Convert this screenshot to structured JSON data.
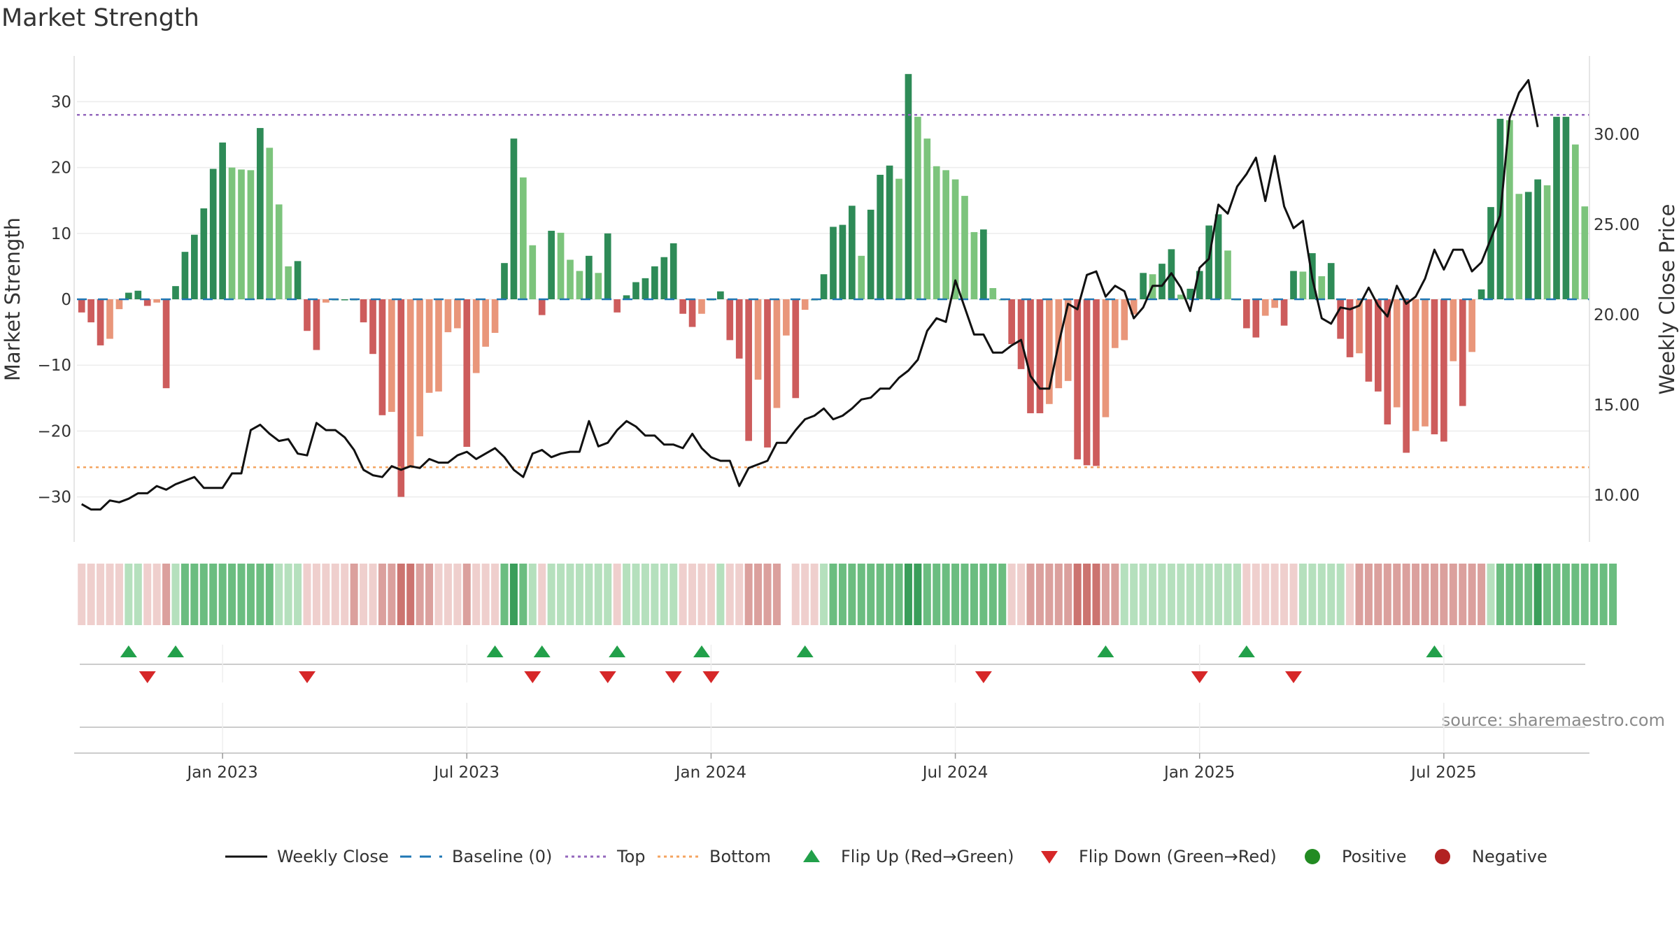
{
  "title": "Market Strength",
  "source": "source: sharemaestro.com",
  "colors": {
    "strong_green": "#2e8b57",
    "light_green": "#7cc47c",
    "strong_red": "#cd5c5c",
    "light_red": "#e9967a",
    "close_line": "#111111",
    "baseline": "#1f77b4",
    "top_line": "#9467bd",
    "bottom_line": "#f4a460",
    "flip_up": "#22a04a",
    "flip_down": "#d62728",
    "positive": "#228b22",
    "negative": "#b22222"
  },
  "legend": [
    {
      "id": "weekly-close",
      "label": "Weekly Close",
      "kind": "line"
    },
    {
      "id": "baseline",
      "label": "Baseline (0)",
      "kind": "dash"
    },
    {
      "id": "top",
      "label": "Top",
      "kind": "dot-purple"
    },
    {
      "id": "bottom",
      "label": "Bottom",
      "kind": "dot-orange"
    },
    {
      "id": "flip-up",
      "label": "Flip Up (Red→Green)",
      "kind": "tri-up"
    },
    {
      "id": "flip-down",
      "label": "Flip Down (Green→Red)",
      "kind": "tri-down"
    },
    {
      "id": "positive",
      "label": "Positive",
      "kind": "dot-green"
    },
    {
      "id": "negative",
      "label": "Negative",
      "kind": "dot-red"
    }
  ],
  "chart_data": {
    "type": "bar",
    "title": "Market Strength",
    "ylabel": "Market Strength",
    "y2label": "Weekly Close Price",
    "ylim": [
      -36,
      36
    ],
    "y2lim": [
      8.5,
      34.2
    ],
    "y_ticks": [
      30,
      20,
      10,
      0,
      -10,
      -20,
      -30
    ],
    "y2_ticks": [
      "30.00",
      "25.00",
      "20.00",
      "15.00",
      "10.00"
    ],
    "x_ticks": [
      {
        "week": 15,
        "label": "Jan 2023"
      },
      {
        "week": 41,
        "label": "Jul 2023"
      },
      {
        "week": 67,
        "label": "Jan 2024"
      },
      {
        "week": 93,
        "label": "Jul 2024"
      },
      {
        "week": 119,
        "label": "Jan 2025"
      },
      {
        "week": 145,
        "label": "Jul 2025"
      }
    ],
    "top_level": 28,
    "bottom_level": -25.5,
    "baseline": 0,
    "grid": true,
    "legend_position": "bottom",
    "strength": [
      -2,
      -3.5,
      -7,
      -6,
      -1.5,
      1,
      1.3,
      -1,
      -0.5,
      -13.5,
      2,
      7.2,
      9.8,
      13.8,
      19.8,
      23.8,
      20,
      19.7,
      19.6,
      26,
      23,
      14.4,
      5,
      5.8,
      -4.8,
      -7.7,
      -0.5,
      0,
      0,
      0,
      -3.5,
      -8.3,
      -17.6,
      -17.1,
      -30,
      -25.5,
      -20.8,
      -14.2,
      -14,
      -5,
      -4.4,
      -22.4,
      -11.2,
      -7.2,
      -5.1,
      5.5,
      24.4,
      18.5,
      8.2,
      -2.4,
      10.4,
      10.1,
      6,
      4.3,
      6.6,
      4,
      10,
      -2,
      0.6,
      2.6,
      3.2,
      5,
      6.4,
      8.5,
      -2.2,
      -4.2,
      -2.2,
      0,
      1.2,
      -6.2,
      -9,
      -21.5,
      -12.2,
      -22.5,
      -16.5,
      -5.5,
      -15,
      -1.6,
      0,
      3.8,
      11,
      11.3,
      14.2,
      6.6,
      13.6,
      18.9,
      20.3,
      18.3,
      34.2,
      27.7,
      24.4,
      20.2,
      19.6,
      18.2,
      15.7,
      10.2,
      10.6,
      1.7,
      0,
      -6.8,
      -10.6,
      -17.3,
      -17.3,
      -15.9,
      -13.5,
      -12.4,
      -24.3,
      -25.2,
      -25.3,
      -17.9,
      -7.4,
      -6.2,
      -2.3,
      4,
      3.8,
      5.4,
      7.6,
      0.7,
      1.6,
      4.3,
      11.2,
      12.9,
      7.4,
      0,
      -4.4,
      -5.8,
      -2.5,
      -1.3,
      -4,
      4.3,
      4.2,
      7,
      3.5,
      5.5,
      -6,
      -8.8,
      -8.2,
      -12.5,
      -14,
      -19,
      -16.4,
      -23.3,
      -20,
      -19.3,
      -20.5,
      -21.6,
      -9.4,
      -16.2,
      -8,
      1.5,
      14,
      27.4,
      27.2,
      16,
      16.3,
      18.2,
      17.3,
      27.7,
      27.7,
      23.5,
      14.1
    ],
    "weekly_close": [
      9.5,
      9.2,
      9.2,
      9.7,
      9.6,
      9.8,
      10.1,
      10.1,
      10.5,
      10.3,
      10.6,
      10.8,
      11,
      10.4,
      10.4,
      10.4,
      11.2,
      11.2,
      13.6,
      13.9,
      13.4,
      13,
      13.1,
      12.3,
      12.2,
      14,
      13.6,
      13.6,
      13.2,
      12.5,
      11.4,
      11.1,
      11,
      11.6,
      11.4,
      11.6,
      11.5,
      12,
      11.8,
      11.8,
      12.2,
      12.4,
      12,
      12.3,
      12.6,
      12.1,
      11.4,
      11,
      12.3,
      12.5,
      12.1,
      12.3,
      12.4,
      12.4,
      14.1,
      12.7,
      12.9,
      13.6,
      14.1,
      13.8,
      13.3,
      13.3,
      12.8,
      12.8,
      12.6,
      13.4,
      12.6,
      12.1,
      11.9,
      11.9,
      10.5,
      11.5,
      11.7,
      11.9,
      12.9,
      12.9,
      13.6,
      14.2,
      14.4,
      14.8,
      14.2,
      14.4,
      14.8,
      15.3,
      15.4,
      15.9,
      15.9,
      16.5,
      16.9,
      17.5,
      19.1,
      19.8,
      19.6,
      21.9,
      20.4,
      18.9,
      18.9,
      17.9,
      17.9,
      18.3,
      18.6,
      16.6,
      15.9,
      15.9,
      18.4,
      20.6,
      20.3,
      22.2,
      22.4,
      21,
      21.6,
      21.3,
      19.8,
      20.4,
      21.6,
      21.6,
      22.3,
      21.5,
      20.2,
      22.6,
      23.1,
      26.1,
      25.6,
      27.1,
      27.8,
      28.7,
      26.3,
      28.8,
      26,
      24.8,
      25.2,
      22,
      19.8,
      19.5,
      20.4,
      20.3,
      20.5,
      21.5,
      20.5,
      19.9,
      21.6,
      20.6,
      21,
      22,
      23.6,
      22.5,
      23.6,
      23.6,
      22.4,
      22.9,
      24.2,
      25.5,
      30.9,
      32.3,
      33,
      30.4
    ],
    "band": [
      -1,
      -1,
      -1,
      -1,
      -1,
      1,
      1,
      -1,
      -1,
      -2,
      1,
      2,
      2,
      2,
      2,
      2,
      2,
      2,
      2,
      2,
      2,
      1,
      1,
      1,
      -1,
      -1,
      -1,
      -1,
      -1,
      -2,
      -1,
      -1,
      -2,
      -2,
      -3,
      -3,
      -2,
      -2,
      -1,
      -1,
      -1,
      -2,
      -1,
      -1,
      -1,
      2,
      3,
      2,
      1,
      -1,
      1,
      1,
      1,
      1,
      1,
      1,
      1,
      -1,
      1,
      1,
      1,
      1,
      1,
      1,
      -1,
      -1,
      -1,
      -1,
      1,
      -1,
      -1,
      -2,
      -2,
      -2,
      -2,
      null,
      -1,
      -1,
      -1,
      1,
      2,
      2,
      2,
      2,
      2,
      2,
      2,
      2,
      3,
      3,
      2,
      2,
      2,
      2,
      2,
      2,
      2,
      2,
      2,
      -1,
      -1,
      -2,
      -2,
      -2,
      -2,
      -2,
      -3,
      -3,
      -3,
      -2,
      -2,
      1,
      1,
      1,
      1,
      1,
      1,
      1,
      1,
      1,
      1,
      1,
      1,
      1,
      -1,
      -1,
      -1,
      -1,
      -1,
      -1,
      1,
      1,
      1,
      1,
      1,
      -1,
      -2,
      -2,
      -2,
      -2,
      -2,
      -2,
      -2,
      -2,
      -2,
      -2,
      -2,
      -2,
      -2,
      -2,
      1,
      2,
      2,
      2,
      2,
      3,
      2,
      2,
      2,
      2,
      2,
      2,
      2,
      2
    ],
    "flip_up_weeks": [
      5,
      10,
      44,
      49,
      57,
      66,
      77,
      109,
      124,
      144
    ],
    "flip_down_weeks": [
      7,
      24,
      48,
      56,
      63,
      67,
      96,
      119,
      129
    ]
  }
}
